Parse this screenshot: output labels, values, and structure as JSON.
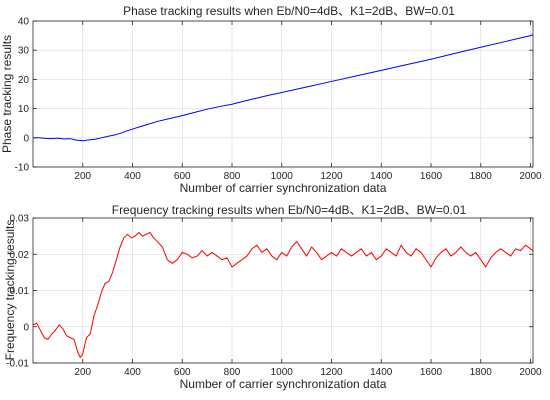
{
  "chart_data": [
    {
      "type": "line",
      "title": "Phase tracking results when Eb/N0=4dB、K1=2dB、BW=0.01",
      "xlabel": "Number of carrier synchronization data",
      "ylabel": "Phase tracking results",
      "xlim": [
        0,
        2010
      ],
      "ylim": [
        -10,
        40
      ],
      "xticks": [
        200,
        400,
        600,
        800,
        1000,
        1200,
        1400,
        1600,
        1800,
        2000
      ],
      "yticks": [
        -10,
        0,
        10,
        20,
        30,
        40
      ],
      "ytick_labels": [
        "-10",
        "0",
        "10",
        "20",
        "30",
        "40"
      ],
      "grid": true,
      "series": [
        {
          "color": "#0000ff",
          "x": [
            0,
            25,
            50,
            75,
            100,
            125,
            150,
            175,
            200,
            225,
            250,
            275,
            300,
            325,
            350,
            375,
            400,
            450,
            500,
            550,
            600,
            650,
            700,
            750,
            800,
            850,
            900,
            950,
            1000,
            1100,
            1200,
            1300,
            1400,
            1500,
            1600,
            1700,
            1800,
            1900,
            2000,
            2010
          ],
          "y": [
            0,
            0,
            -0.2,
            -0.3,
            -0.1,
            -0.4,
            -0.3,
            -0.8,
            -1.0,
            -0.7,
            -0.5,
            0.0,
            0.5,
            0.9,
            1.5,
            2.3,
            3.0,
            4.3,
            5.6,
            6.6,
            7.6,
            8.7,
            9.8,
            10.7,
            11.5,
            12.6,
            13.6,
            14.6,
            15.5,
            17.4,
            19.3,
            21.2,
            23.1,
            25.0,
            26.9,
            29.0,
            31.0,
            33.0,
            35.0,
            35.3
          ]
        }
      ]
    },
    {
      "type": "line",
      "title": "Frequency tracking results when Eb/N0=4dB、K1=2dB、BW=0.01",
      "xlabel": "Number of carrier synchronization data",
      "ylabel": "Frequency tracking results",
      "xlim": [
        0,
        2010
      ],
      "ylim": [
        -0.01,
        0.03
      ],
      "xticks": [
        200,
        400,
        600,
        800,
        1000,
        1200,
        1400,
        1600,
        1800,
        2000
      ],
      "yticks": [
        -0.01,
        0,
        0.01,
        0.02,
        0.03
      ],
      "ytick_labels": [
        "-0.01",
        "0",
        "0.01",
        "0.02",
        "0.03"
      ],
      "grid": true,
      "series": [
        {
          "color": "#ff0000",
          "x": [
            0,
            15,
            30,
            45,
            60,
            75,
            90,
            105,
            120,
            135,
            150,
            165,
            180,
            190,
            200,
            215,
            230,
            245,
            260,
            275,
            290,
            305,
            320,
            335,
            350,
            365,
            380,
            395,
            410,
            425,
            440,
            455,
            470,
            485,
            500,
            520,
            540,
            560,
            580,
            600,
            620,
            640,
            660,
            680,
            700,
            720,
            740,
            760,
            780,
            800,
            820,
            840,
            860,
            880,
            900,
            920,
            940,
            960,
            980,
            1000,
            1020,
            1040,
            1060,
            1080,
            1100,
            1120,
            1140,
            1160,
            1180,
            1200,
            1220,
            1240,
            1260,
            1280,
            1300,
            1320,
            1340,
            1360,
            1380,
            1400,
            1420,
            1440,
            1460,
            1480,
            1500,
            1520,
            1540,
            1560,
            1580,
            1600,
            1620,
            1640,
            1660,
            1680,
            1700,
            1720,
            1740,
            1760,
            1780,
            1800,
            1820,
            1840,
            1860,
            1880,
            1900,
            1920,
            1940,
            1960,
            1980,
            2000,
            2010
          ],
          "y": [
            0.0005,
            0.001,
            -0.001,
            -0.003,
            -0.0035,
            -0.002,
            -0.001,
            0.0005,
            -0.0005,
            -0.0025,
            -0.003,
            -0.0035,
            -0.007,
            -0.0085,
            -0.0075,
            -0.003,
            -0.002,
            0.003,
            0.006,
            0.0095,
            0.012,
            0.0125,
            0.015,
            0.0185,
            0.022,
            0.0245,
            0.0255,
            0.0245,
            0.025,
            0.026,
            0.025,
            0.0255,
            0.026,
            0.0245,
            0.0235,
            0.022,
            0.0185,
            0.0175,
            0.0185,
            0.0205,
            0.02,
            0.019,
            0.0195,
            0.021,
            0.0195,
            0.0205,
            0.0195,
            0.0185,
            0.019,
            0.0165,
            0.0175,
            0.0185,
            0.0195,
            0.0215,
            0.0225,
            0.0205,
            0.0215,
            0.0195,
            0.0185,
            0.0205,
            0.0195,
            0.022,
            0.0235,
            0.0215,
            0.0195,
            0.022,
            0.0205,
            0.0185,
            0.0195,
            0.0205,
            0.0195,
            0.0215,
            0.0205,
            0.0195,
            0.0205,
            0.0215,
            0.0195,
            0.0205,
            0.0185,
            0.0195,
            0.0215,
            0.0205,
            0.0195,
            0.0225,
            0.0205,
            0.0195,
            0.0215,
            0.0205,
            0.0185,
            0.0165,
            0.019,
            0.0205,
            0.0215,
            0.0195,
            0.0205,
            0.022,
            0.0205,
            0.0195,
            0.0205,
            0.0185,
            0.0165,
            0.019,
            0.0205,
            0.0215,
            0.0205,
            0.0195,
            0.0215,
            0.021,
            0.0225,
            0.0215,
            0.021
          ]
        }
      ]
    }
  ]
}
